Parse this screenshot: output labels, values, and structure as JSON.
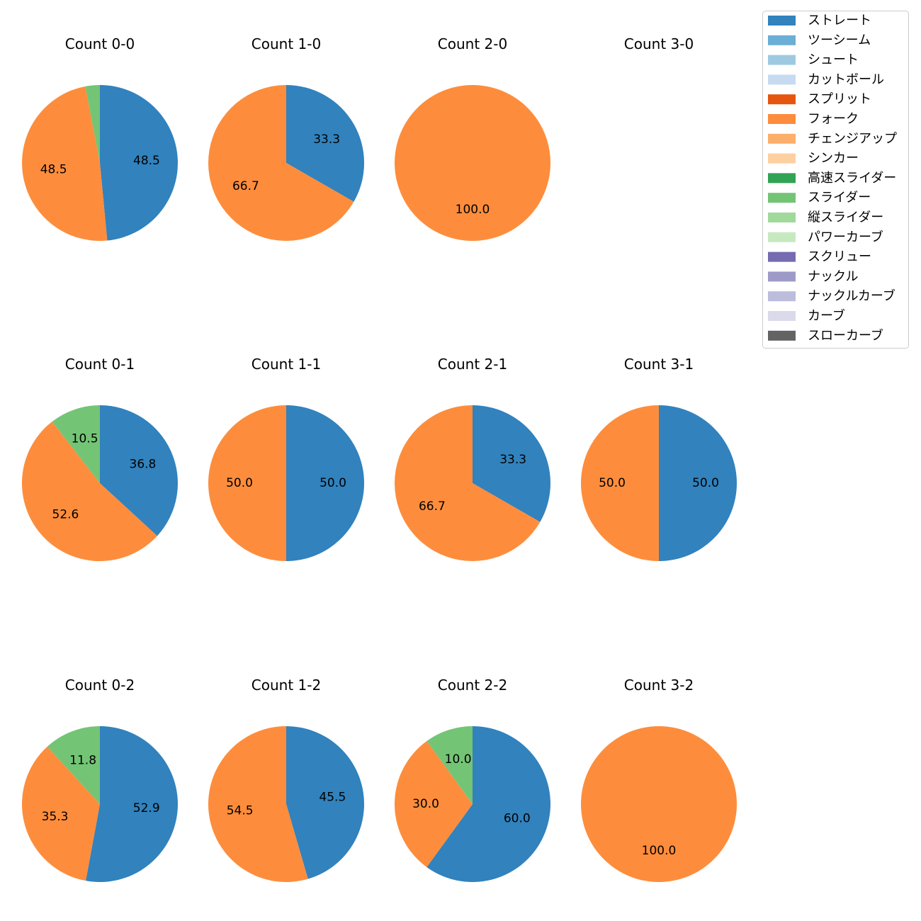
{
  "chart_data": {
    "type": "pie",
    "start_angle_deg": 90,
    "direction": "clockwise",
    "legend": {
      "placement": "top-right",
      "entries": [
        {
          "name": "ストレート",
          "color": "#3182bd"
        },
        {
          "name": "ツーシーム",
          "color": "#6baed6"
        },
        {
          "name": "シュート",
          "color": "#9ecae1"
        },
        {
          "name": "カットボール",
          "color": "#c6dbef"
        },
        {
          "name": "スプリット",
          "color": "#e6550d"
        },
        {
          "name": "フォーク",
          "color": "#fd8d3c"
        },
        {
          "name": "チェンジアップ",
          "color": "#fdae6b"
        },
        {
          "name": "シンカー",
          "color": "#fdd0a2"
        },
        {
          "name": "高速スライダー",
          "color": "#31a354"
        },
        {
          "name": "スライダー",
          "color": "#74c476"
        },
        {
          "name": "縦スライダー",
          "color": "#a1d99b"
        },
        {
          "name": "パワーカーブ",
          "color": "#c7e9c0"
        },
        {
          "name": "スクリュー",
          "color": "#756bb1"
        },
        {
          "name": "ナックル",
          "color": "#9e9ac8"
        },
        {
          "name": "ナックルカーブ",
          "color": "#bcbddc"
        },
        {
          "name": "カーブ",
          "color": "#dadaeb"
        },
        {
          "name": "スローカーブ",
          "color": "#636363"
        }
      ]
    },
    "pies": [
      {
        "title": "Count 0-0",
        "slices": [
          {
            "category": "ストレート",
            "value": 48.5,
            "label": "48.5"
          },
          {
            "category": "フォーク",
            "value": 48.5,
            "label": "48.5"
          },
          {
            "category": "スライダー",
            "value": 3.0,
            "label": ""
          }
        ]
      },
      {
        "title": "Count 1-0",
        "slices": [
          {
            "category": "ストレート",
            "value": 33.3,
            "label": "33.3"
          },
          {
            "category": "フォーク",
            "value": 66.7,
            "label": "66.7"
          }
        ]
      },
      {
        "title": "Count 2-0",
        "slices": [
          {
            "category": "フォーク",
            "value": 100.0,
            "label": "100.0"
          }
        ]
      },
      {
        "title": "Count 3-0",
        "slices": []
      },
      {
        "title": "Count 0-1",
        "slices": [
          {
            "category": "ストレート",
            "value": 36.8,
            "label": "36.8"
          },
          {
            "category": "フォーク",
            "value": 52.6,
            "label": "52.6"
          },
          {
            "category": "スライダー",
            "value": 10.5,
            "label": "10.5"
          }
        ]
      },
      {
        "title": "Count 1-1",
        "slices": [
          {
            "category": "ストレート",
            "value": 50.0,
            "label": "50.0"
          },
          {
            "category": "フォーク",
            "value": 50.0,
            "label": "50.0"
          }
        ]
      },
      {
        "title": "Count 2-1",
        "slices": [
          {
            "category": "ストレート",
            "value": 33.3,
            "label": "33.3"
          },
          {
            "category": "フォーク",
            "value": 66.7,
            "label": "66.7"
          }
        ]
      },
      {
        "title": "Count 3-1",
        "slices": [
          {
            "category": "ストレート",
            "value": 50.0,
            "label": "50.0"
          },
          {
            "category": "フォーク",
            "value": 50.0,
            "label": "50.0"
          }
        ]
      },
      {
        "title": "Count 0-2",
        "slices": [
          {
            "category": "ストレート",
            "value": 52.9,
            "label": "52.9"
          },
          {
            "category": "フォーク",
            "value": 35.3,
            "label": "35.3"
          },
          {
            "category": "スライダー",
            "value": 11.8,
            "label": "11.8"
          }
        ]
      },
      {
        "title": "Count 1-2",
        "slices": [
          {
            "category": "ストレート",
            "value": 45.5,
            "label": "45.5"
          },
          {
            "category": "フォーク",
            "value": 54.5,
            "label": "54.5"
          }
        ]
      },
      {
        "title": "Count 2-2",
        "slices": [
          {
            "category": "ストレート",
            "value": 60.0,
            "label": "60.0"
          },
          {
            "category": "フォーク",
            "value": 30.0,
            "label": "30.0"
          },
          {
            "category": "スライダー",
            "value": 10.0,
            "label": "10.0"
          }
        ]
      },
      {
        "title": "Count 3-2",
        "slices": [
          {
            "category": "フォーク",
            "value": 100.0,
            "label": "100.0"
          }
        ]
      }
    ]
  }
}
